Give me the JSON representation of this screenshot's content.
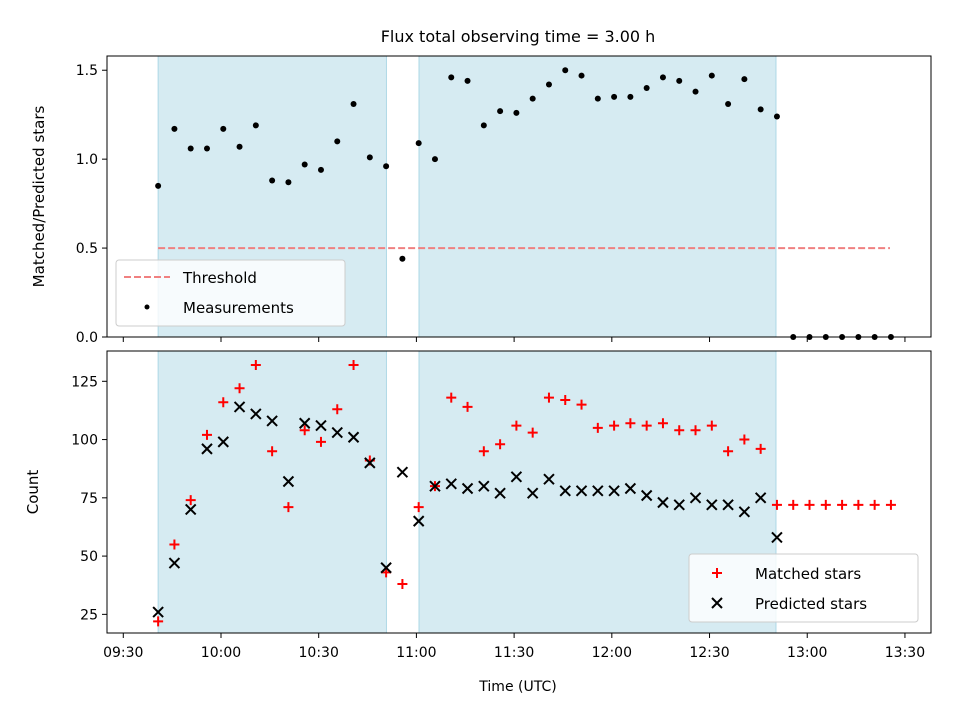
{
  "figure_title": "Flux total observing time = 3.00 h",
  "x_tick_labels": [
    "09:30",
    "10:00",
    "10:30",
    "11:00",
    "11:30",
    "12:00",
    "12:30",
    "13:00",
    "13:30"
  ],
  "xlabel": "Time (UTC)",
  "colors": {
    "shade": "#add8e6",
    "threshold": "#f08080",
    "matched": "#ff0000",
    "predicted": "#000000",
    "measurements": "#000000"
  },
  "chart_data": [
    {
      "type": "scatter",
      "xlabel": "",
      "ylabel": "Matched/Predicted stars",
      "x_unit": "minutes after 09:30 UTC",
      "xlim": [
        -5,
        248
      ],
      "ylim": [
        0.0,
        1.58
      ],
      "y_ticks": [
        0.0,
        0.5,
        1.0,
        1.5
      ],
      "y_tick_labels": [
        "0.0",
        "0.5",
        "1.0",
        "1.5"
      ],
      "shaded_spans": [
        [
          10.7,
          80.8
        ],
        [
          90.8,
          200.4
        ]
      ],
      "threshold": {
        "name": "Threshold",
        "y": 0.5,
        "x_range": [
          10.7,
          235.4
        ],
        "style": "dashed"
      },
      "legend": {
        "position": "lower-left",
        "entries": [
          "Threshold",
          "Measurements"
        ]
      },
      "series": [
        {
          "name": "Measurements",
          "marker": "dot",
          "x": [
            10.7,
            15.7,
            20.7,
            25.7,
            30.7,
            35.7,
            40.7,
            45.7,
            50.7,
            55.7,
            60.7,
            65.7,
            70.7,
            75.7,
            80.7,
            85.7,
            90.7,
            95.7,
            100.7,
            105.7,
            110.7,
            115.7,
            120.7,
            125.7,
            130.7,
            135.7,
            140.7,
            145.7,
            150.7,
            155.7,
            160.7,
            165.7,
            170.7,
            175.7,
            180.7,
            185.7,
            190.7,
            195.7,
            200.7,
            205.7,
            210.7,
            215.7,
            220.7,
            225.7,
            230.7,
            235.7
          ],
          "y": [
            0.85,
            1.17,
            1.06,
            1.06,
            1.17,
            1.07,
            1.19,
            0.88,
            0.87,
            0.97,
            0.94,
            1.1,
            1.31,
            1.01,
            0.96,
            0.44,
            1.09,
            1.0,
            1.46,
            1.44,
            1.19,
            1.27,
            1.26,
            1.34,
            1.42,
            1.5,
            1.47,
            1.34,
            1.35,
            1.35,
            1.4,
            1.46,
            1.44,
            1.38,
            1.47,
            1.31,
            1.45,
            1.28,
            1.24,
            0.0,
            0.0,
            0.0,
            0.0,
            0.0,
            0.0,
            0.0
          ]
        }
      ]
    },
    {
      "type": "scatter",
      "xlabel": "Time (UTC)",
      "ylabel": "Count",
      "x_unit": "minutes after 09:30 UTC",
      "xlim": [
        -5,
        248
      ],
      "ylim": [
        17,
        138
      ],
      "y_ticks": [
        25,
        50,
        75,
        100,
        125
      ],
      "y_tick_labels": [
        "25",
        "50",
        "75",
        "100",
        "125"
      ],
      "shaded_spans": [
        [
          10.7,
          80.8
        ],
        [
          90.8,
          200.4
        ]
      ],
      "legend": {
        "position": "lower-right",
        "entries": [
          "Matched stars",
          "Predicted stars"
        ]
      },
      "series": [
        {
          "name": "Matched stars",
          "marker": "plus",
          "x": [
            10.7,
            15.7,
            20.7,
            25.7,
            30.7,
            35.7,
            40.7,
            45.7,
            50.7,
            55.7,
            60.7,
            65.7,
            70.7,
            75.7,
            80.7,
            85.7,
            90.7,
            95.7,
            100.7,
            105.7,
            110.7,
            115.7,
            120.7,
            125.7,
            130.7,
            135.7,
            140.7,
            145.7,
            150.7,
            155.7,
            160.7,
            165.7,
            170.7,
            175.7,
            180.7,
            185.7,
            190.7,
            195.7,
            200.7,
            205.7,
            210.7,
            215.7,
            220.7,
            225.7,
            230.7,
            235.7
          ],
          "y": [
            22,
            55,
            74,
            102,
            116,
            122,
            132,
            95,
            71,
            104,
            99,
            113,
            132,
            91,
            43,
            38,
            71,
            80,
            118,
            114,
            95,
            98,
            106,
            103,
            118,
            117,
            115,
            105,
            106,
            107,
            106,
            107,
            104,
            104,
            106,
            95,
            100,
            96,
            72,
            72,
            72,
            72,
            72,
            72,
            72,
            72
          ]
        },
        {
          "name": "Predicted stars",
          "marker": "x",
          "x": [
            10.7,
            15.7,
            20.7,
            25.7,
            30.7,
            35.7,
            40.7,
            45.7,
            50.7,
            55.7,
            60.7,
            65.7,
            70.7,
            75.7,
            80.7,
            85.7,
            90.7,
            95.7,
            100.7,
            105.7,
            110.7,
            115.7,
            120.7,
            125.7,
            130.7,
            135.7,
            140.7,
            145.7,
            150.7,
            155.7,
            160.7,
            165.7,
            170.7,
            175.7,
            180.7,
            185.7,
            190.7,
            195.7,
            200.7
          ],
          "y": [
            26,
            47,
            70,
            96,
            99,
            114,
            111,
            108,
            82,
            107,
            106,
            103,
            101,
            90,
            45,
            86,
            65,
            80,
            81,
            79,
            80,
            77,
            84,
            77,
            83,
            78,
            78,
            78,
            78,
            79,
            76,
            73,
            72,
            75,
            72,
            72,
            69,
            75,
            58
          ]
        }
      ]
    }
  ]
}
